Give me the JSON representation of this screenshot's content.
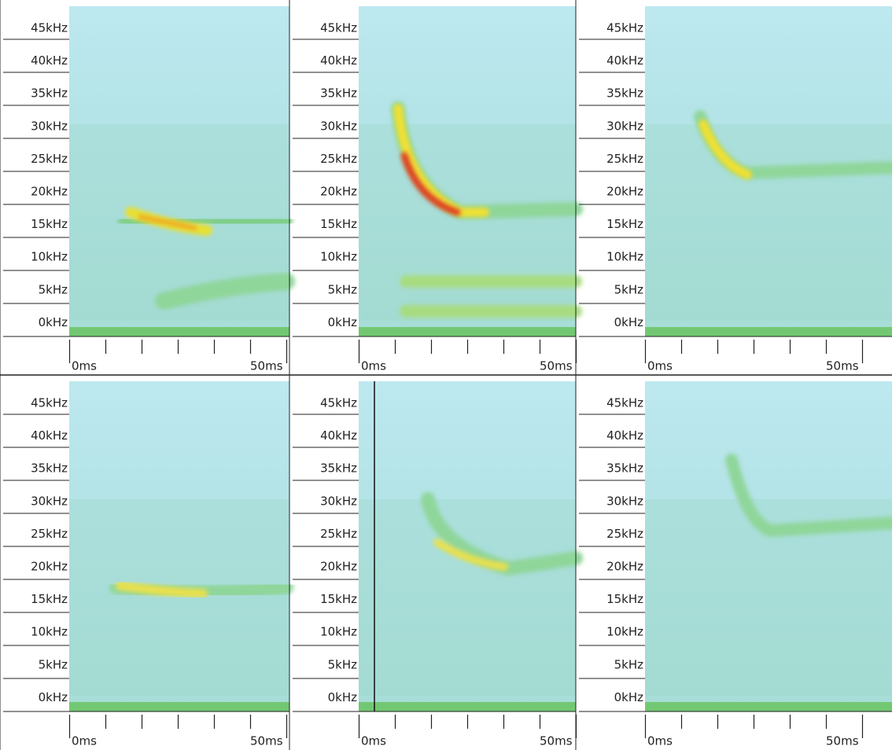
{
  "panels": [
    {
      "y_labels": [
        "45kHz",
        "40kHz",
        "35kHz",
        "30kHz",
        "25kHz",
        "20kHz",
        "15kHz",
        "10kHz",
        "5kHz",
        "0kHz"
      ],
      "x_labels": [
        "0ms",
        "50ms"
      ]
    },
    {
      "y_labels": [
        "45kHz",
        "40kHz",
        "35kHz",
        "30kHz",
        "25kHz",
        "20kHz",
        "15kHz",
        "10kHz",
        "5kHz",
        "0kHz"
      ],
      "x_labels": [
        "0ms",
        "50ms"
      ]
    },
    {
      "y_labels": [
        "45kHz",
        "40kHz",
        "35kHz",
        "30kHz",
        "25kHz",
        "20kHz",
        "15kHz",
        "10kHz",
        "5kHz",
        "0kHz"
      ],
      "x_labels": [
        "0ms",
        "50ms"
      ]
    },
    {
      "y_labels": [
        "45kHz",
        "40kHz",
        "35kHz",
        "30kHz",
        "25kHz",
        "20kHz",
        "15kHz",
        "10kHz",
        "5kHz",
        "0kHz"
      ],
      "x_labels": [
        "0ms",
        "50ms"
      ]
    },
    {
      "y_labels": [
        "45kHz",
        "40kHz",
        "35kHz",
        "30kHz",
        "25kHz",
        "20kHz",
        "15kHz",
        "10kHz",
        "5kHz",
        "0kHz"
      ],
      "x_labels": [
        "0ms",
        "50ms"
      ]
    },
    {
      "y_labels": [
        "45kHz",
        "40kHz",
        "35kHz",
        "30kHz",
        "25kHz",
        "20kHz",
        "15kHz",
        "10kHz",
        "5kHz",
        "0kHz"
      ],
      "x_labels": [
        "0ms",
        "50ms"
      ]
    }
  ]
}
